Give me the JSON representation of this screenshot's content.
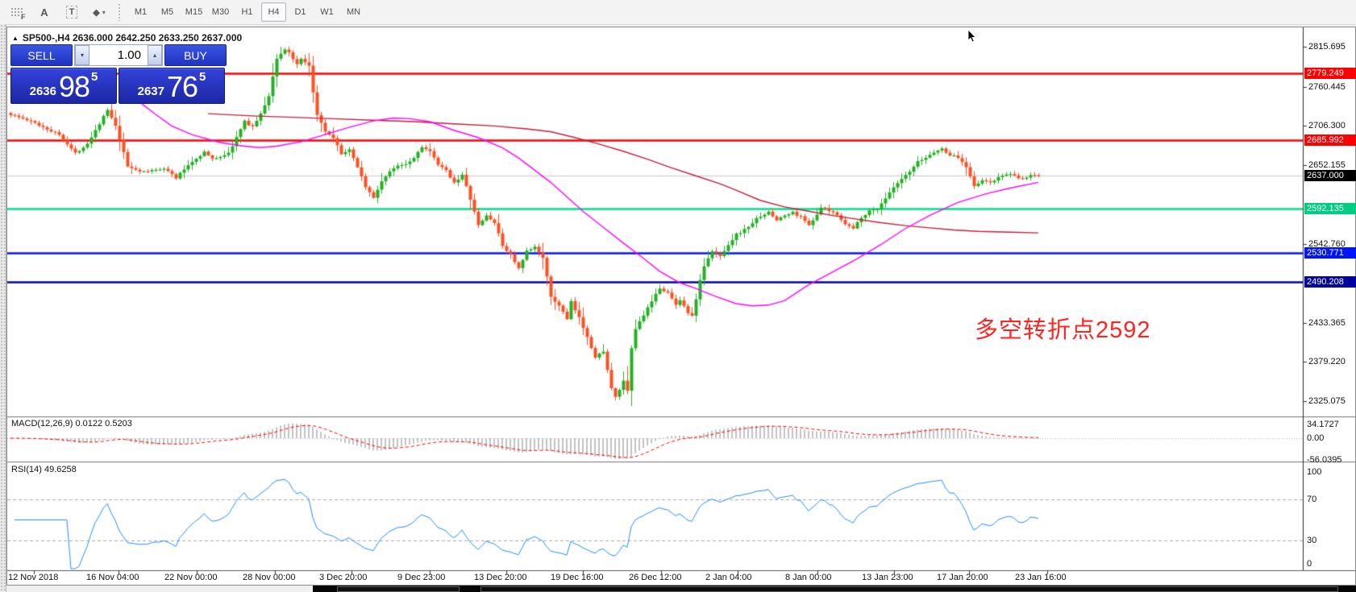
{
  "toolbar": {
    "icons": [
      {
        "name": "indicators-grid-icon",
        "glyph": "F"
      },
      {
        "name": "font-icon",
        "glyph": "A"
      },
      {
        "name": "text-label-icon",
        "glyph": "T"
      },
      {
        "name": "shapes-icon",
        "glyph": "◆"
      },
      {
        "name": "dropdown-caret-icon",
        "glyph": "▾"
      }
    ],
    "timeframes": [
      "M1",
      "M5",
      "M15",
      "M30",
      "H1",
      "H4",
      "D1",
      "W1",
      "MN"
    ],
    "active_timeframe": "H4"
  },
  "chart": {
    "title": "SP500-,H4 2636.000 2642.250 2633.250 2637.000",
    "collapse_glyph": "▲"
  },
  "trade_panel": {
    "sell_label": "SELL",
    "buy_label": "BUY",
    "volume": "1.00",
    "spin_down_glyph": "▾",
    "spin_up_glyph": "▴",
    "sell_price_small": "2636",
    "sell_price_big": "98",
    "sell_price_sup": "5",
    "buy_price_small": "2637",
    "buy_price_big": "76",
    "buy_price_sup": "5"
  },
  "annotation": {
    "text": "多空转折点2592",
    "color": "#ff2420"
  },
  "chart_data": {
    "type": "candlestick",
    "symbol": "SP500-",
    "timeframe": "H4",
    "last_ohlc": {
      "open": 2636.0,
      "high": 2642.25,
      "low": 2633.25,
      "close": 2637.0
    },
    "current_price": 2637.0,
    "y_axis_visible_range": [
      2305.0,
      2843.0
    ],
    "y_ticks": [
      "2815.695",
      "2760.445",
      "2706.300",
      "2652.155",
      "2542.760",
      "2433.365",
      "2379.220",
      "2325.075"
    ],
    "x_ticks": [
      "12 Nov 2018",
      "16 Nov 04:00",
      "22 Nov 00:00",
      "28 Nov 00:00",
      "3 Dec 20:00",
      "9 Dec 23:00",
      "13 Dec 20:00",
      "19 Dec 16:00",
      "26 Dec 12:00",
      "2 Jan 04:00",
      "8 Jan 00:00",
      "13 Jan 23:00",
      "17 Jan 20:00",
      "23 Jan 16:00"
    ],
    "hlines": [
      {
        "price": 2779.249,
        "color": "#ff0000",
        "width": 3,
        "label": "2779.249",
        "badge": "#ff0000"
      },
      {
        "price": 2685.992,
        "color": "#ff0000",
        "width": 3,
        "label": "2685.992",
        "badge": "#ff0000"
      },
      {
        "price": 2637.0,
        "color": "#c8c8c8",
        "width": 1,
        "label": "2637.000",
        "badge": "#000000"
      },
      {
        "price": 2592.135,
        "color": "#00e08a",
        "width": 3,
        "label": "2592.135",
        "badge": "#00cc84"
      },
      {
        "price": 2530.771,
        "color": "#0014ff",
        "width": 3,
        "label": "2530.771",
        "badge": "#0014ff"
      },
      {
        "price": 2490.208,
        "color": "#0000a0",
        "width": 3,
        "label": "2490.208",
        "badge": "#0000a0"
      }
    ],
    "bars_count": 256,
    "close_anchors": [
      [
        0,
        2722
      ],
      [
        6,
        2710
      ],
      [
        12,
        2694
      ],
      [
        16,
        2668
      ],
      [
        19,
        2682
      ],
      [
        24,
        2728
      ],
      [
        26,
        2705
      ],
      [
        29,
        2650
      ],
      [
        33,
        2642
      ],
      [
        38,
        2648
      ],
      [
        41,
        2634
      ],
      [
        44,
        2652
      ],
      [
        48,
        2670
      ],
      [
        50,
        2660
      ],
      [
        54,
        2668
      ],
      [
        56,
        2690
      ],
      [
        58,
        2712
      ],
      [
        60,
        2705
      ],
      [
        62,
        2722
      ],
      [
        64,
        2748
      ],
      [
        66,
        2800
      ],
      [
        68,
        2812
      ],
      [
        69,
        2808
      ],
      [
        71,
        2790
      ],
      [
        72,
        2798
      ],
      [
        74,
        2788
      ],
      [
        76,
        2720
      ],
      [
        78,
        2698
      ],
      [
        80,
        2688
      ],
      [
        82,
        2668
      ],
      [
        84,
        2672
      ],
      [
        86,
        2650
      ],
      [
        88,
        2622
      ],
      [
        90,
        2606
      ],
      [
        92,
        2630
      ],
      [
        94,
        2642
      ],
      [
        96,
        2652
      ],
      [
        98,
        2654
      ],
      [
        100,
        2662
      ],
      [
        102,
        2678
      ],
      [
        104,
        2670
      ],
      [
        106,
        2652
      ],
      [
        108,
        2644
      ],
      [
        110,
        2628
      ],
      [
        112,
        2638
      ],
      [
        114,
        2605
      ],
      [
        116,
        2568
      ],
      [
        118,
        2582
      ],
      [
        120,
        2572
      ],
      [
        122,
        2540
      ],
      [
        124,
        2528
      ],
      [
        126,
        2508
      ],
      [
        128,
        2532
      ],
      [
        130,
        2538
      ],
      [
        132,
        2525
      ],
      [
        134,
        2468
      ],
      [
        136,
        2458
      ],
      [
        138,
        2438
      ],
      [
        139,
        2462
      ],
      [
        141,
        2440
      ],
      [
        143,
        2415
      ],
      [
        145,
        2385
      ],
      [
        147,
        2395
      ],
      [
        148,
        2368
      ],
      [
        149,
        2342
      ],
      [
        150,
        2330
      ],
      [
        152,
        2352
      ],
      [
        153,
        2338
      ],
      [
        154,
        2398
      ],
      [
        155,
        2425
      ],
      [
        157,
        2445
      ],
      [
        159,
        2462
      ],
      [
        161,
        2482
      ],
      [
        163,
        2475
      ],
      [
        165,
        2458
      ],
      [
        166,
        2466
      ],
      [
        168,
        2448
      ],
      [
        169,
        2442
      ],
      [
        171,
        2492
      ],
      [
        172,
        2512
      ],
      [
        174,
        2532
      ],
      [
        176,
        2526
      ],
      [
        178,
        2542
      ],
      [
        180,
        2556
      ],
      [
        182,
        2562
      ],
      [
        184,
        2572
      ],
      [
        186,
        2582
      ],
      [
        188,
        2586
      ],
      [
        190,
        2576
      ],
      [
        192,
        2582
      ],
      [
        194,
        2586
      ],
      [
        196,
        2580
      ],
      [
        198,
        2570
      ],
      [
        200,
        2582
      ],
      [
        201,
        2593
      ],
      [
        203,
        2588
      ],
      [
        205,
        2584
      ],
      [
        207,
        2570
      ],
      [
        209,
        2564
      ],
      [
        211,
        2580
      ],
      [
        213,
        2588
      ],
      [
        215,
        2592
      ],
      [
        217,
        2606
      ],
      [
        219,
        2620
      ],
      [
        221,
        2632
      ],
      [
        223,
        2642
      ],
      [
        225,
        2656
      ],
      [
        227,
        2662
      ],
      [
        229,
        2670
      ],
      [
        231,
        2674
      ],
      [
        233,
        2666
      ],
      [
        235,
        2662
      ],
      [
        237,
        2650
      ],
      [
        239,
        2624
      ],
      [
        241,
        2630
      ],
      [
        243,
        2628
      ],
      [
        245,
        2634
      ],
      [
        247,
        2640
      ],
      [
        249,
        2636
      ],
      [
        251,
        2632
      ],
      [
        253,
        2638
      ],
      [
        255,
        2637
      ]
    ],
    "ma_fast": {
      "name": "MA fast",
      "color": "#ff00ff",
      "points": [
        [
          28,
          2758
        ],
        [
          33,
          2735
        ],
        [
          36,
          2722
        ],
        [
          40,
          2706
        ],
        [
          45,
          2694
        ],
        [
          52,
          2683
        ],
        [
          58,
          2678
        ],
        [
          62,
          2676
        ],
        [
          66,
          2678
        ],
        [
          72,
          2684
        ],
        [
          78,
          2694
        ],
        [
          84,
          2704
        ],
        [
          90,
          2713
        ],
        [
          95,
          2717
        ],
        [
          99,
          2716
        ],
        [
          104,
          2712
        ],
        [
          110,
          2700
        ],
        [
          116,
          2690
        ],
        [
          122,
          2676
        ],
        [
          126,
          2662
        ],
        [
          130,
          2645
        ],
        [
          134,
          2628
        ],
        [
          138,
          2608
        ],
        [
          142,
          2588
        ],
        [
          147,
          2566
        ],
        [
          152,
          2544
        ],
        [
          157,
          2523
        ],
        [
          161,
          2505
        ],
        [
          166,
          2489
        ],
        [
          170,
          2481
        ],
        [
          175,
          2470
        ],
        [
          180,
          2460
        ],
        [
          184,
          2457
        ],
        [
          188,
          2458
        ],
        [
          192,
          2464
        ],
        [
          198,
          2486
        ],
        [
          204,
          2504
        ],
        [
          210,
          2522
        ],
        [
          216,
          2542
        ],
        [
          222,
          2564
        ],
        [
          228,
          2582
        ],
        [
          235,
          2600
        ],
        [
          242,
          2612
        ],
        [
          248,
          2620
        ],
        [
          255,
          2628
        ]
      ]
    },
    "ma_slow": {
      "name": "MA slow",
      "color": "#c41e3a",
      "points": [
        [
          49,
          2723
        ],
        [
          60,
          2720
        ],
        [
          70,
          2718
        ],
        [
          80,
          2716
        ],
        [
          90,
          2714
        ],
        [
          100,
          2712
        ],
        [
          110,
          2709
        ],
        [
          120,
          2706
        ],
        [
          128,
          2702
        ],
        [
          134,
          2698
        ],
        [
          140,
          2690
        ],
        [
          146,
          2681
        ],
        [
          152,
          2671
        ],
        [
          158,
          2660
        ],
        [
          164,
          2648
        ],
        [
          170,
          2637
        ],
        [
          176,
          2626
        ],
        [
          180,
          2617
        ],
        [
          186,
          2603
        ],
        [
          192,
          2594
        ],
        [
          198,
          2588
        ],
        [
          204,
          2582
        ],
        [
          210,
          2577
        ],
        [
          216,
          2572
        ],
        [
          222,
          2568
        ],
        [
          228,
          2565
        ],
        [
          234,
          2562
        ],
        [
          240,
          2560
        ],
        [
          248,
          2559
        ],
        [
          255,
          2558
        ]
      ]
    },
    "macd": {
      "label": "MACD(12,26,9) 0.0122 0.5203",
      "params": [
        12,
        26,
        9
      ],
      "value": 0.0122,
      "signal_value": 0.5203,
      "axis_labels": [
        "34.1727",
        "0.00",
        "-56.0395"
      ],
      "histogram_color": "#c2c2c2",
      "signal_color": "#ff0000"
    },
    "rsi": {
      "label": "RSI(14) 49.6258",
      "period": 14,
      "value": 49.6258,
      "axis_labels": [
        "100",
        "70",
        "30",
        "0"
      ],
      "levels": [
        70,
        30
      ],
      "line_color": "#1f8fff"
    }
  },
  "bottom_bar": {}
}
